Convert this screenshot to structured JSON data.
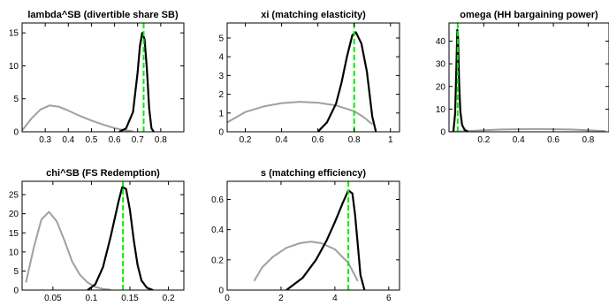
{
  "chart_data": [
    {
      "type": "line",
      "title": "lambda^SB (divertible share SB)",
      "xlim": [
        0.2,
        0.9
      ],
      "ylim": [
        0,
        16.5
      ],
      "xticks": [
        0.3,
        0.4,
        0.5,
        0.6,
        0.7,
        0.8
      ],
      "yticks": [
        0,
        5,
        10,
        15
      ],
      "xticklabels": [
        "0.3",
        "0.4",
        "0.5",
        "0.6",
        "0.7",
        "0.8"
      ],
      "yticklabels": [
        "0",
        "5",
        "10",
        "15"
      ],
      "grid": false,
      "series": [
        {
          "color": "#a0a0a0",
          "x": [
            0.2,
            0.24,
            0.28,
            0.32,
            0.36,
            0.4,
            0.45,
            0.5,
            0.55,
            0.6,
            0.64,
            0.68
          ],
          "y": [
            0.2,
            2.0,
            3.4,
            4.0,
            3.8,
            3.2,
            2.4,
            1.7,
            1.1,
            0.55,
            0.25,
            0.08
          ]
        },
        {
          "color": "#000000",
          "x": [
            0.62,
            0.65,
            0.68,
            0.7,
            0.71,
            0.72,
            0.73,
            0.74,
            0.75,
            0.76,
            0.77
          ],
          "y": [
            0.0,
            0.5,
            3.0,
            9.0,
            13.0,
            15.0,
            14.0,
            9.5,
            3.5,
            0.5,
            0.0
          ]
        }
      ],
      "vline": {
        "x": 0.726,
        "color": "#00ee00"
      }
    },
    {
      "type": "line",
      "title": "xi (matching elasticity)",
      "xlim": [
        0.1,
        1.05
      ],
      "ylim": [
        0,
        5.8
      ],
      "xticks": [
        0.2,
        0.4,
        0.6,
        0.8,
        1.0
      ],
      "yticks": [
        0,
        1,
        2,
        3,
        4,
        5
      ],
      "xticklabels": [
        "0.2",
        "0.4",
        "0.6",
        "0.8",
        "1"
      ],
      "yticklabels": [
        "0",
        "1",
        "2",
        "3",
        "4",
        "5"
      ],
      "grid": false,
      "series": [
        {
          "color": "#a0a0a0",
          "x": [
            0.1,
            0.2,
            0.3,
            0.4,
            0.5,
            0.6,
            0.7,
            0.8,
            0.85,
            0.9
          ],
          "y": [
            0.5,
            1.05,
            1.35,
            1.53,
            1.6,
            1.55,
            1.4,
            1.1,
            0.8,
            0.4
          ]
        },
        {
          "color": "#000000",
          "x": [
            0.6,
            0.65,
            0.7,
            0.73,
            0.76,
            0.79,
            0.81,
            0.84,
            0.87,
            0.9,
            0.92
          ],
          "y": [
            0.0,
            0.5,
            1.5,
            2.6,
            4.0,
            5.15,
            5.3,
            4.7,
            3.2,
            0.8,
            0.0
          ]
        }
      ],
      "vline": {
        "x": 0.8,
        "color": "#00ee00"
      }
    },
    {
      "type": "line",
      "title": "omega (HH bargaining power)",
      "xlim": [
        0,
        0.92
      ],
      "ylim": [
        0,
        48
      ],
      "xticks": [
        0.2,
        0.4,
        0.6,
        0.8
      ],
      "yticks": [
        0,
        10,
        20,
        30,
        40
      ],
      "xticklabels": [
        "0.2",
        "0.4",
        "0.6",
        "0.8"
      ],
      "yticklabels": [
        "0",
        "10",
        "20",
        "30",
        "40"
      ],
      "grid": false,
      "series": [
        {
          "color": "#a0a0a0",
          "x": [
            0.0,
            0.1,
            0.2,
            0.3,
            0.4,
            0.5,
            0.6,
            0.7,
            0.8,
            0.9
          ],
          "y": [
            0.0,
            0.3,
            0.7,
            1.0,
            1.15,
            1.2,
            1.15,
            1.0,
            0.7,
            0.3
          ]
        },
        {
          "color": "#000000",
          "x": [
            0.025,
            0.035,
            0.042,
            0.048,
            0.052,
            0.058,
            0.065,
            0.075,
            0.09,
            0.11
          ],
          "y": [
            0.0,
            8.0,
            28.0,
            45.0,
            42.0,
            22.0,
            9.0,
            3.0,
            0.8,
            0.0
          ]
        }
      ],
      "vline": {
        "x": 0.05,
        "color": "#00ee00"
      }
    },
    {
      "type": "line",
      "title": "chi^SB (FS Redemption)",
      "xlim": [
        0.01,
        0.22
      ],
      "ylim": [
        0,
        28.5
      ],
      "xticks": [
        0.05,
        0.1,
        0.15,
        0.2
      ],
      "yticks": [
        0,
        5,
        10,
        15,
        20,
        25
      ],
      "xticklabels": [
        "0.05",
        "0.1",
        "0.15",
        "0.2"
      ],
      "yticklabels": [
        "0",
        "5",
        "10",
        "15",
        "20",
        "25"
      ],
      "grid": false,
      "series": [
        {
          "color": "#a0a0a0",
          "x": [
            0.015,
            0.025,
            0.035,
            0.045,
            0.055,
            0.065,
            0.075,
            0.085,
            0.095,
            0.105,
            0.115,
            0.125
          ],
          "y": [
            2.0,
            11.0,
            18.5,
            20.5,
            18.0,
            13.0,
            7.5,
            4.0,
            2.0,
            0.8,
            0.3,
            0.1
          ]
        },
        {
          "color": "#000000",
          "x": [
            0.095,
            0.105,
            0.115,
            0.125,
            0.135,
            0.14,
            0.145,
            0.15,
            0.155,
            0.16,
            0.165,
            0.172,
            0.18
          ],
          "y": [
            0.0,
            1.5,
            6.0,
            14.0,
            23.0,
            27.0,
            26.5,
            21.0,
            13.0,
            6.5,
            2.5,
            0.6,
            0.0
          ]
        }
      ],
      "vline": {
        "x": 0.141,
        "color": "#00ee00"
      }
    },
    {
      "type": "line",
      "title": "s (matching efficiency)",
      "xlim": [
        0,
        6.4
      ],
      "ylim": [
        0,
        0.72
      ],
      "xticks": [
        0,
        2,
        4,
        6
      ],
      "yticks": [
        0,
        0.2,
        0.4,
        0.6
      ],
      "xticklabels": [
        "0",
        "2",
        "4",
        "6"
      ],
      "yticklabels": [
        "0",
        "0.2",
        "0.4",
        "0.6"
      ],
      "grid": false,
      "series": [
        {
          "color": "#a0a0a0",
          "x": [
            1.0,
            1.3,
            1.7,
            2.2,
            2.7,
            3.1,
            3.5,
            4.0,
            4.5,
            4.85
          ],
          "y": [
            0.06,
            0.15,
            0.22,
            0.28,
            0.31,
            0.32,
            0.31,
            0.27,
            0.18,
            0.06
          ]
        },
        {
          "color": "#000000",
          "x": [
            2.2,
            2.8,
            3.3,
            3.7,
            4.0,
            4.3,
            4.5,
            4.65,
            4.75,
            4.85,
            4.95,
            5.1
          ],
          "y": [
            0.0,
            0.08,
            0.2,
            0.33,
            0.45,
            0.58,
            0.66,
            0.64,
            0.5,
            0.3,
            0.1,
            0.0
          ]
        }
      ],
      "vline": {
        "x": 4.5,
        "color": "#00ee00"
      }
    }
  ]
}
